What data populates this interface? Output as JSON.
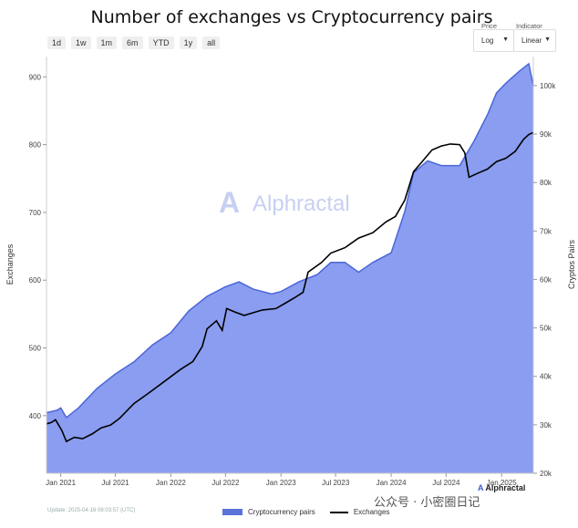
{
  "title": "Number of exchanges vs Cryptocurrency pairs",
  "range_buttons": [
    "1d",
    "1w",
    "1m",
    "6m",
    "YTD",
    "1y",
    "all"
  ],
  "controls": {
    "price": {
      "label": "Price",
      "value": "Log"
    },
    "indicator": {
      "label": "Indicator",
      "value": "Linear"
    }
  },
  "watermark": "Alphractal",
  "footer_update": "Update: 2025-04-16 08:03:57 (UTC)",
  "overlay_text": "公众号 · 小密圈日记",
  "brand": "Alphractal",
  "colors": {
    "area": "#8a9df0",
    "area_edge": "#4a66d8",
    "line": "#000000"
  },
  "chart_data": {
    "type": "area",
    "xlabel": "",
    "ylabel_left": "Exchanges",
    "ylabel_right": "Cryptos Pairs",
    "x_ticks": [
      "Jan 2021",
      "Jul 2021",
      "Jan 2022",
      "Jul 2022",
      "Jan 2023",
      "Jul 2023",
      "Jan 2024",
      "Jul 2024",
      "Jan 2025"
    ],
    "y_left_ticks": [
      400,
      500,
      600,
      700,
      800,
      900
    ],
    "y_left_range": [
      315,
      930
    ],
    "y_right_ticks": [
      "20k",
      "30k",
      "40k",
      "50k",
      "60k",
      "70k",
      "80k",
      "90k",
      "100k"
    ],
    "y_right_range": [
      20000,
      106000
    ],
    "legend": [
      "Cryptocurrency pairs",
      "Exchanges"
    ],
    "x_range": [
      "2020-11-15",
      "2025-04-16"
    ],
    "series": [
      {
        "name": "Cryptocurrency pairs",
        "axis": "right",
        "points": [
          [
            "2020-11-15",
            32500
          ],
          [
            "2020-12-20",
            33000
          ],
          [
            "2021-01-01",
            33500
          ],
          [
            "2021-01-20",
            31500
          ],
          [
            "2021-03-01",
            33500
          ],
          [
            "2021-05-01",
            37500
          ],
          [
            "2021-07-01",
            40500
          ],
          [
            "2021-09-01",
            43000
          ],
          [
            "2021-11-01",
            46500
          ],
          [
            "2022-01-01",
            49000
          ],
          [
            "2022-03-01",
            53500
          ],
          [
            "2022-05-01",
            56500
          ],
          [
            "2022-07-01",
            58500
          ],
          [
            "2022-08-15",
            59500
          ],
          [
            "2022-10-01",
            58000
          ],
          [
            "2022-12-01",
            57000
          ],
          [
            "2023-01-01",
            57500
          ],
          [
            "2023-03-01",
            59500
          ],
          [
            "2023-05-01",
            61000
          ],
          [
            "2023-06-15",
            63500
          ],
          [
            "2023-08-01",
            63500
          ],
          [
            "2023-09-15",
            61500
          ],
          [
            "2023-11-01",
            63500
          ],
          [
            "2024-01-01",
            65500
          ],
          [
            "2024-02-15",
            74000
          ],
          [
            "2024-03-15",
            82000
          ],
          [
            "2024-05-01",
            84500
          ],
          [
            "2024-06-15",
            83500
          ],
          [
            "2024-08-15",
            83500
          ],
          [
            "2024-10-01",
            88500
          ],
          [
            "2024-11-15",
            94000
          ],
          [
            "2024-12-15",
            98500
          ],
          [
            "2025-01-15",
            100500
          ],
          [
            "2025-03-01",
            103000
          ],
          [
            "2025-04-01",
            104500
          ],
          [
            "2025-04-16",
            100000
          ]
        ]
      },
      {
        "name": "Exchanges",
        "axis": "left",
        "points": [
          [
            "2020-11-15",
            388
          ],
          [
            "2020-12-01",
            390
          ],
          [
            "2020-12-15",
            394
          ],
          [
            "2021-01-05",
            378
          ],
          [
            "2021-01-20",
            362
          ],
          [
            "2021-02-15",
            368
          ],
          [
            "2021-03-15",
            366
          ],
          [
            "2021-04-15",
            373
          ],
          [
            "2021-05-15",
            382
          ],
          [
            "2021-06-15",
            386
          ],
          [
            "2021-07-15",
            396
          ],
          [
            "2021-09-01",
            418
          ],
          [
            "2021-10-15",
            432
          ],
          [
            "2021-12-15",
            452
          ],
          [
            "2022-02-01",
            468
          ],
          [
            "2022-03-15",
            480
          ],
          [
            "2022-04-15",
            502
          ],
          [
            "2022-05-01",
            528
          ],
          [
            "2022-06-01",
            540
          ],
          [
            "2022-06-20",
            526
          ],
          [
            "2022-07-05",
            558
          ],
          [
            "2022-08-01",
            553
          ],
          [
            "2022-09-01",
            548
          ],
          [
            "2022-10-01",
            552
          ],
          [
            "2022-11-01",
            556
          ],
          [
            "2022-12-15",
            558
          ],
          [
            "2023-01-15",
            566
          ],
          [
            "2023-02-15",
            574
          ],
          [
            "2023-03-15",
            582
          ],
          [
            "2023-04-01",
            612
          ],
          [
            "2023-05-15",
            626
          ],
          [
            "2023-06-15",
            640
          ],
          [
            "2023-08-01",
            648
          ],
          [
            "2023-09-15",
            662
          ],
          [
            "2023-11-01",
            670
          ],
          [
            "2023-12-15",
            686
          ],
          [
            "2024-01-15",
            694
          ],
          [
            "2024-02-15",
            718
          ],
          [
            "2024-03-15",
            760
          ],
          [
            "2024-04-15",
            776
          ],
          [
            "2024-05-15",
            792
          ],
          [
            "2024-06-15",
            798
          ],
          [
            "2024-07-15",
            801
          ],
          [
            "2024-08-15",
            800
          ],
          [
            "2024-09-01",
            788
          ],
          [
            "2024-09-15",
            752
          ],
          [
            "2024-10-15",
            758
          ],
          [
            "2024-11-15",
            764
          ],
          [
            "2024-12-15",
            775
          ],
          [
            "2025-01-15",
            780
          ],
          [
            "2025-02-15",
            790
          ],
          [
            "2025-03-15",
            808
          ],
          [
            "2025-04-01",
            815
          ],
          [
            "2025-04-16",
            818
          ]
        ]
      }
    ]
  }
}
